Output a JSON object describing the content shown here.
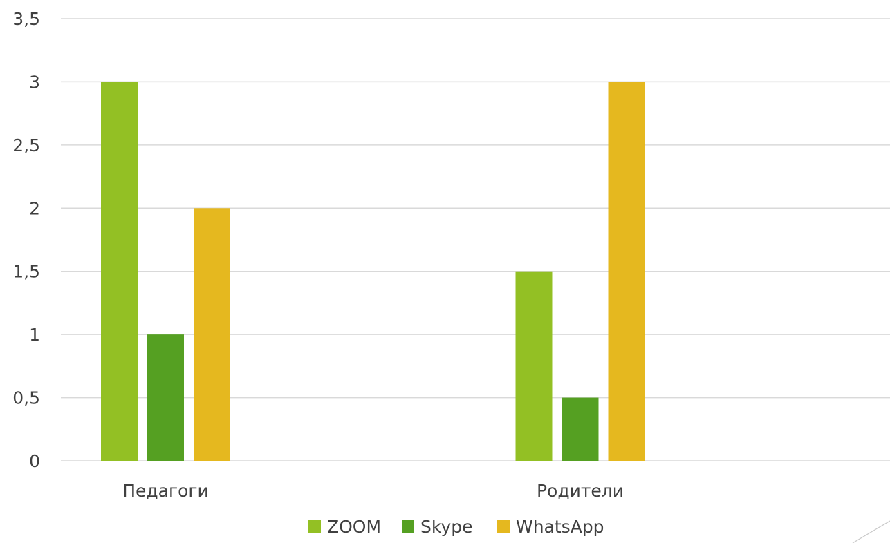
{
  "chart_data": {
    "type": "bar",
    "categories": [
      "Педагоги",
      "Родители"
    ],
    "series": [
      {
        "name": "ZOOM",
        "values": [
          3,
          1.5
        ],
        "color": "#93c024"
      },
      {
        "name": "Skype",
        "values": [
          1,
          0.5
        ],
        "color": "#55a022"
      },
      {
        "name": "WhatsApp",
        "values": [
          2,
          3
        ],
        "color": "#e5b81f"
      }
    ],
    "y_ticks": [
      "0",
      "0,5",
      "1",
      "1,5",
      "2",
      "2,5",
      "3",
      "3,5"
    ],
    "ylim": [
      0,
      3.5
    ],
    "grid": true,
    "legend_position": "bottom",
    "title": "",
    "xlabel": "",
    "ylabel": ""
  }
}
